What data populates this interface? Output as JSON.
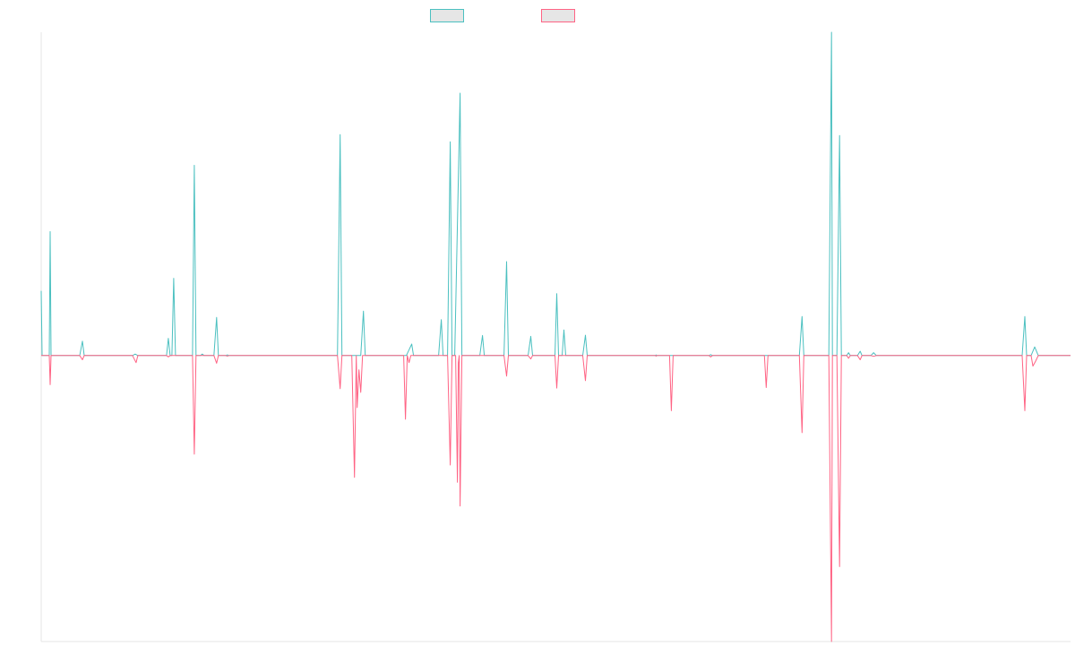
{
  "chart_data": {
    "type": "line",
    "title": "",
    "xlabel": "",
    "ylabel": "",
    "xlim": [
      0,
      1150
    ],
    "ylim": [
      -100,
      113
    ],
    "grid": false,
    "legend": "top-center",
    "series": [
      {
        "name": "",
        "color": "#4bc0c0",
        "fill": "#e6e6e6",
        "points": [
          [
            0,
            22.6
          ],
          [
            1,
            0
          ],
          [
            9,
            0
          ],
          [
            10,
            43.3
          ],
          [
            11,
            0
          ],
          [
            43,
            0
          ],
          [
            46,
            5
          ],
          [
            48,
            0
          ],
          [
            102,
            0
          ],
          [
            105,
            0.5
          ],
          [
            108,
            0
          ],
          [
            140,
            0
          ],
          [
            142,
            6
          ],
          [
            144,
            0
          ],
          [
            146,
            0
          ],
          [
            148,
            27
          ],
          [
            150,
            0
          ],
          [
            169,
            0
          ],
          [
            171,
            66.5
          ],
          [
            173,
            0
          ],
          [
            178,
            0
          ],
          [
            180,
            0.5
          ],
          [
            182,
            0
          ],
          [
            193,
            0
          ],
          [
            196,
            13.3
          ],
          [
            198,
            0
          ],
          [
            206,
            0
          ],
          [
            208,
            0.2
          ],
          [
            210,
            0
          ],
          [
            331,
            0
          ],
          [
            334,
            77.2
          ],
          [
            336,
            0
          ],
          [
            357,
            0
          ],
          [
            360,
            15.5
          ],
          [
            362,
            0
          ],
          [
            408,
            0
          ],
          [
            411,
            2
          ],
          [
            414,
            4
          ],
          [
            416,
            0
          ],
          [
            444,
            0
          ],
          [
            447,
            12.5
          ],
          [
            449,
            0
          ],
          [
            454,
            0
          ],
          [
            457,
            74.7
          ],
          [
            459,
            0
          ],
          [
            462,
            0
          ],
          [
            468,
            91.7
          ],
          [
            470,
            0
          ],
          [
            490,
            0
          ],
          [
            493,
            7
          ],
          [
            495,
            0
          ],
          [
            517,
            0
          ],
          [
            520,
            32.8
          ],
          [
            522,
            0
          ],
          [
            544,
            0
          ],
          [
            547,
            6.7
          ],
          [
            549,
            0
          ],
          [
            574,
            0
          ],
          [
            576,
            21.6
          ],
          [
            578,
            0
          ],
          [
            582,
            0
          ],
          [
            584,
            8.9
          ],
          [
            586,
            0
          ],
          [
            605,
            0
          ],
          [
            608,
            7.1
          ],
          [
            610,
            0
          ],
          [
            686,
            0
          ],
          [
            687,
            0.2
          ],
          [
            688,
            0
          ],
          [
            746,
            0
          ],
          [
            748,
            0.3
          ],
          [
            750,
            0
          ],
          [
            847,
            0
          ],
          [
            850,
            13.6
          ],
          [
            852,
            0
          ],
          [
            880,
            0
          ],
          [
            883,
            113
          ],
          [
            884,
            0
          ],
          [
            889,
            0
          ],
          [
            892,
            76.9
          ],
          [
            894,
            0
          ],
          [
            900,
            0
          ],
          [
            902,
            1
          ],
          [
            904,
            0
          ],
          [
            912,
            0
          ],
          [
            915,
            1.5
          ],
          [
            917,
            0
          ],
          [
            927,
            0
          ],
          [
            930,
            1
          ],
          [
            933,
            0
          ],
          [
            1096,
            0
          ],
          [
            1099,
            13.6
          ],
          [
            1101,
            0
          ],
          [
            1106,
            0
          ],
          [
            1110,
            3
          ],
          [
            1114,
            0
          ],
          [
            1150,
            0
          ]
        ]
      },
      {
        "name": "",
        "color": "#ff6384",
        "fill": "#e6e6e6",
        "points": [
          [
            0,
            0
          ],
          [
            9,
            0
          ],
          [
            10,
            -10.2
          ],
          [
            11,
            0
          ],
          [
            43,
            0
          ],
          [
            46,
            -1.5
          ],
          [
            48,
            0
          ],
          [
            102,
            0
          ],
          [
            106,
            -2.5
          ],
          [
            108,
            0
          ],
          [
            140,
            0
          ],
          [
            142,
            -0.5
          ],
          [
            144,
            0
          ],
          [
            169,
            0
          ],
          [
            171,
            -34.5
          ],
          [
            173,
            0
          ],
          [
            193,
            0
          ],
          [
            196,
            -2.7
          ],
          [
            198,
            0
          ],
          [
            206,
            0
          ],
          [
            208,
            -0.2
          ],
          [
            210,
            0
          ],
          [
            331,
            0
          ],
          [
            334,
            -11.6
          ],
          [
            336,
            0
          ],
          [
            347,
            0
          ],
          [
            350,
            -42.6
          ],
          [
            352,
            0
          ],
          [
            353,
            -18.2
          ],
          [
            355,
            -5
          ],
          [
            357,
            -12.9
          ],
          [
            359,
            0
          ],
          [
            405,
            0
          ],
          [
            407,
            -22.3
          ],
          [
            409,
            0
          ],
          [
            411,
            -2.5
          ],
          [
            413,
            0
          ],
          [
            454,
            0
          ],
          [
            457,
            -38.3
          ],
          [
            459,
            0
          ],
          [
            463,
            0
          ],
          [
            465,
            -44.3
          ],
          [
            466,
            -2.6
          ],
          [
            467,
            0
          ],
          [
            468,
            -52.6
          ],
          [
            470,
            0
          ],
          [
            517,
            0
          ],
          [
            520,
            -7.2
          ],
          [
            522,
            0
          ],
          [
            544,
            0
          ],
          [
            547,
            -1.2
          ],
          [
            549,
            0
          ],
          [
            574,
            0
          ],
          [
            576,
            -11.4
          ],
          [
            578,
            0
          ],
          [
            605,
            0
          ],
          [
            608,
            -8.8
          ],
          [
            610,
            0
          ],
          [
            686,
            0
          ],
          [
            687,
            -0.2
          ],
          [
            688,
            0
          ],
          [
            702,
            0
          ],
          [
            704,
            -19.3
          ],
          [
            706,
            0
          ],
          [
            746,
            0
          ],
          [
            748,
            -0.5
          ],
          [
            750,
            0
          ],
          [
            808,
            0
          ],
          [
            810,
            -11.2
          ],
          [
            812,
            0
          ],
          [
            847,
            0
          ],
          [
            850,
            -27
          ],
          [
            852,
            0
          ],
          [
            880,
            0
          ],
          [
            883,
            -100
          ],
          [
            884,
            0
          ],
          [
            889,
            0
          ],
          [
            892,
            -73.8
          ],
          [
            894,
            0
          ],
          [
            900,
            0
          ],
          [
            902,
            -1
          ],
          [
            904,
            0
          ],
          [
            912,
            0
          ],
          [
            915,
            -1.5
          ],
          [
            917,
            0
          ],
          [
            927,
            0
          ],
          [
            930,
            -0.3
          ],
          [
            933,
            0
          ],
          [
            1096,
            0
          ],
          [
            1099,
            -19.3
          ],
          [
            1101,
            0
          ],
          [
            1106,
            0
          ],
          [
            1108,
            -3.7
          ],
          [
            1111,
            -2
          ],
          [
            1114,
            0
          ],
          [
            1150,
            0
          ]
        ]
      }
    ]
  }
}
